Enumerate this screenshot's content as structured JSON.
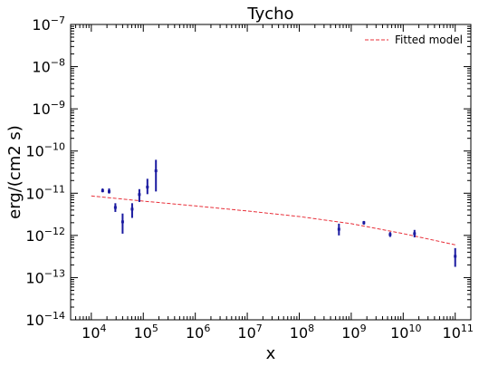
{
  "chart_data": {
    "type": "scatter",
    "title": "Tycho",
    "xlabel": "x",
    "ylabel": "erg/(cm2 s)",
    "xscale": "log",
    "yscale": "log",
    "xlim": [
      4000,
      200000000000
    ],
    "ylim": [
      1e-14,
      1e-07
    ],
    "grid": false,
    "legend": {
      "placement": "top-right",
      "entries": [
        "Fitted model"
      ]
    },
    "x_tick_labels": [
      {
        "value": 10000,
        "base": "10",
        "exp": "4"
      },
      {
        "value": 100000,
        "base": "10",
        "exp": "5"
      },
      {
        "value": 1000000,
        "base": "10",
        "exp": "6"
      },
      {
        "value": 10000000,
        "base": "10",
        "exp": "7"
      },
      {
        "value": 100000000,
        "base": "10",
        "exp": "8"
      },
      {
        "value": 1000000000,
        "base": "10",
        "exp": "9"
      },
      {
        "value": 10000000000,
        "base": "10",
        "exp": "10"
      },
      {
        "value": 100000000000,
        "base": "10",
        "exp": "11"
      }
    ],
    "y_tick_labels": [
      {
        "value": 1e-14,
        "base": "10",
        "exp": "−14"
      },
      {
        "value": 1e-13,
        "base": "10",
        "exp": "−13"
      },
      {
        "value": 1e-12,
        "base": "10",
        "exp": "−12"
      },
      {
        "value": 1e-11,
        "base": "10",
        "exp": "−11"
      },
      {
        "value": 1e-10,
        "base": "10",
        "exp": "−10"
      },
      {
        "value": 1e-09,
        "base": "10",
        "exp": "−9"
      },
      {
        "value": 1e-08,
        "base": "10",
        "exp": "−8"
      },
      {
        "value": 1e-07,
        "base": "10",
        "exp": "−7"
      }
    ],
    "series": [
      {
        "name": "Fitted model",
        "kind": "line",
        "color": "#e8303a",
        "dash": "dashed",
        "x": [
          10000,
          100000,
          1000000,
          10000000,
          100000000,
          1000000000,
          10000000000,
          100000000000
        ],
        "y": [
          8.6e-12,
          6.5e-12,
          5e-12,
          3.8e-12,
          2.8e-12,
          1.9e-12,
          1.1e-12,
          6e-13
        ]
      },
      {
        "kind": "errorbar",
        "color": "#1a1aa0",
        "points": [
          {
            "x": 16500,
            "y": 1.15e-11,
            "ylow": 1.05e-11,
            "yhigh": 1.3e-11
          },
          {
            "x": 22000,
            "y": 1.1e-11,
            "ylow": 9.8e-12,
            "yhigh": 1.3e-11
          },
          {
            "x": 29000,
            "y": 4.6e-12,
            "ylow": 3.6e-12,
            "yhigh": 5.8e-12
          },
          {
            "x": 40000,
            "y": 2.1e-12,
            "ylow": 1.1e-12,
            "yhigh": 3.3e-12
          },
          {
            "x": 61000,
            "y": 4.2e-12,
            "ylow": 2.6e-12,
            "yhigh": 5.8e-12
          },
          {
            "x": 84000,
            "y": 9.3e-12,
            "ylow": 6.2e-12,
            "yhigh": 1.25e-11
          },
          {
            "x": 120000,
            "y": 1.4e-11,
            "ylow": 9.5e-12,
            "yhigh": 2.2e-11
          },
          {
            "x": 175000,
            "y": 3.4e-11,
            "ylow": 1.1e-11,
            "yhigh": 6.2e-11
          },
          {
            "x": 580000000,
            "y": 1.4e-12,
            "ylow": 1e-12,
            "yhigh": 1.9e-12
          },
          {
            "x": 1750000000,
            "y": 2e-12,
            "ylow": 1.8e-12,
            "yhigh": 2.2e-12
          },
          {
            "x": 5600000000,
            "y": 1.05e-12,
            "ylow": 9.2e-13,
            "yhigh": 1.2e-12
          },
          {
            "x": 16500000000,
            "y": 1.1e-12,
            "ylow": 9e-13,
            "yhigh": 1.35e-12
          },
          {
            "x": 100000000000,
            "y": 3.2e-13,
            "ylow": 1.8e-13,
            "yhigh": 5e-13
          }
        ]
      }
    ]
  }
}
